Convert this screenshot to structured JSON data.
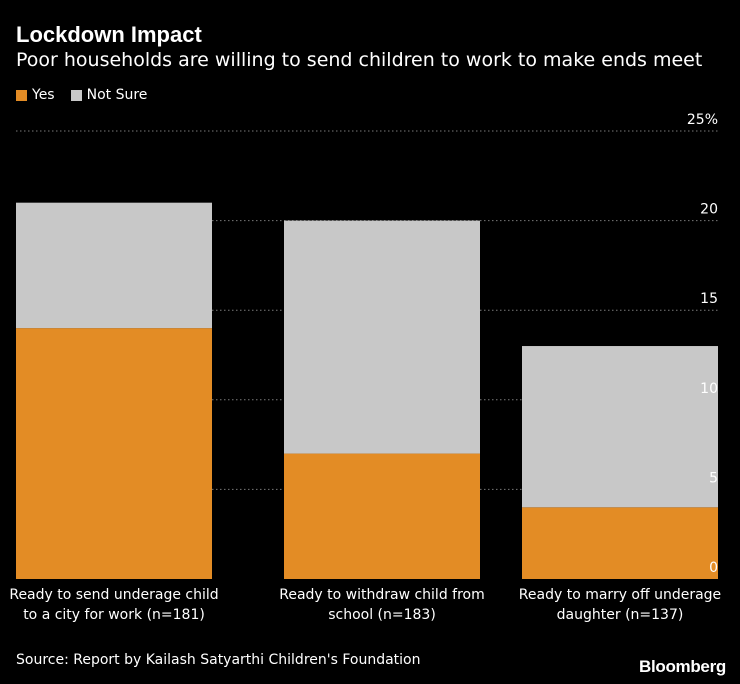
{
  "header": {
    "title": "Lockdown Impact",
    "subtitle": "Poor households are willing to send children to work to make ends meet"
  },
  "legend": [
    {
      "label": "Yes",
      "color": "#E38C25"
    },
    {
      "label": "Not Sure",
      "color": "#C8C8C8"
    }
  ],
  "chart_data": {
    "type": "bar",
    "stacked": true,
    "categories": [
      [
        "Ready to send underage child",
        "to a city for work (n=181)"
      ],
      [
        "Ready to withdraw child from",
        "school (n=183)"
      ],
      [
        "Ready to marry off underage",
        "daughter (n=137)"
      ]
    ],
    "series": [
      {
        "name": "Yes",
        "color": "#E38C25",
        "values": [
          14,
          7,
          4
        ]
      },
      {
        "name": "Not Sure",
        "color": "#C8C8C8",
        "values": [
          7,
          13,
          9
        ]
      }
    ],
    "ylim": [
      0,
      25
    ],
    "yticks": [
      0,
      5,
      10,
      15,
      20,
      25
    ],
    "ytick_labels": [
      "0",
      "5",
      "10",
      "15",
      "20",
      "25%"
    ],
    "y_axis_side": "right",
    "grid": true
  },
  "footer": {
    "source": "Source: Report by Kailash Satyarthi Children's Foundation",
    "brand": "Bloomberg"
  }
}
